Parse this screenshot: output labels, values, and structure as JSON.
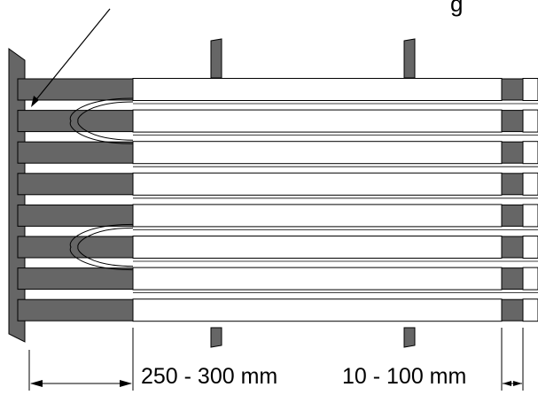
{
  "labels": {
    "top_label": "g",
    "dim_left": "250 - 300 mm",
    "dim_right": "10 - 100 mm"
  },
  "colors": {
    "bar_gray": "#666666",
    "wrap_white": "#ffffff",
    "outline": "#000000"
  },
  "rows": 8
}
